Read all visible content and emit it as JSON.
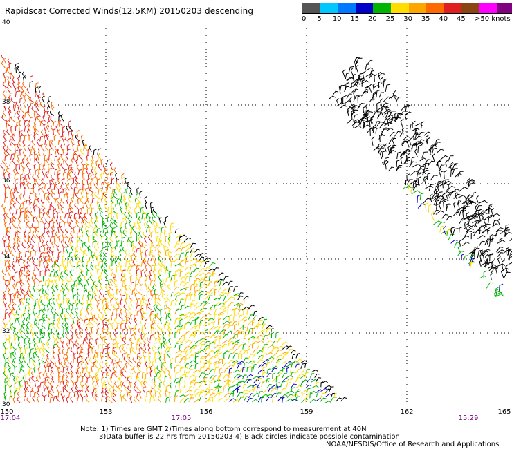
{
  "header": {
    "title": "Rapidscat Corrected Winds(12.5KM) 20150203 descending"
  },
  "legend": {
    "colors": [
      "#555555",
      "#00c8ff",
      "#0078ff",
      "#0000c8",
      "#00b400",
      "#ffdd00",
      "#ffa500",
      "#ff6a00",
      "#e02020",
      "#8b4513",
      "#ff00ff",
      "#800080"
    ],
    "labels": [
      "0",
      "5",
      "10",
      "15",
      "20",
      "25",
      "30",
      "35",
      "40",
      "45",
      ">50 knots"
    ]
  },
  "map": {
    "lat_labels": [
      "40",
      "38",
      "36",
      "34",
      "32",
      "30"
    ],
    "lon_labels": [
      "150",
      "153",
      "156",
      "159",
      "162",
      "165"
    ],
    "time_labels": [
      "17:04",
      "17:05",
      "15:29"
    ]
  },
  "footer": {
    "note_line1": "Note: 1) Times are GMT 2)Times along bottom correspond to measurement at 40N",
    "note_line2": "3)Data buffer is 22 hrs from 20150203 4) Black circles indicate possible contamination",
    "credit": "NOAA/NESDIS/Office of Research and Applications"
  }
}
